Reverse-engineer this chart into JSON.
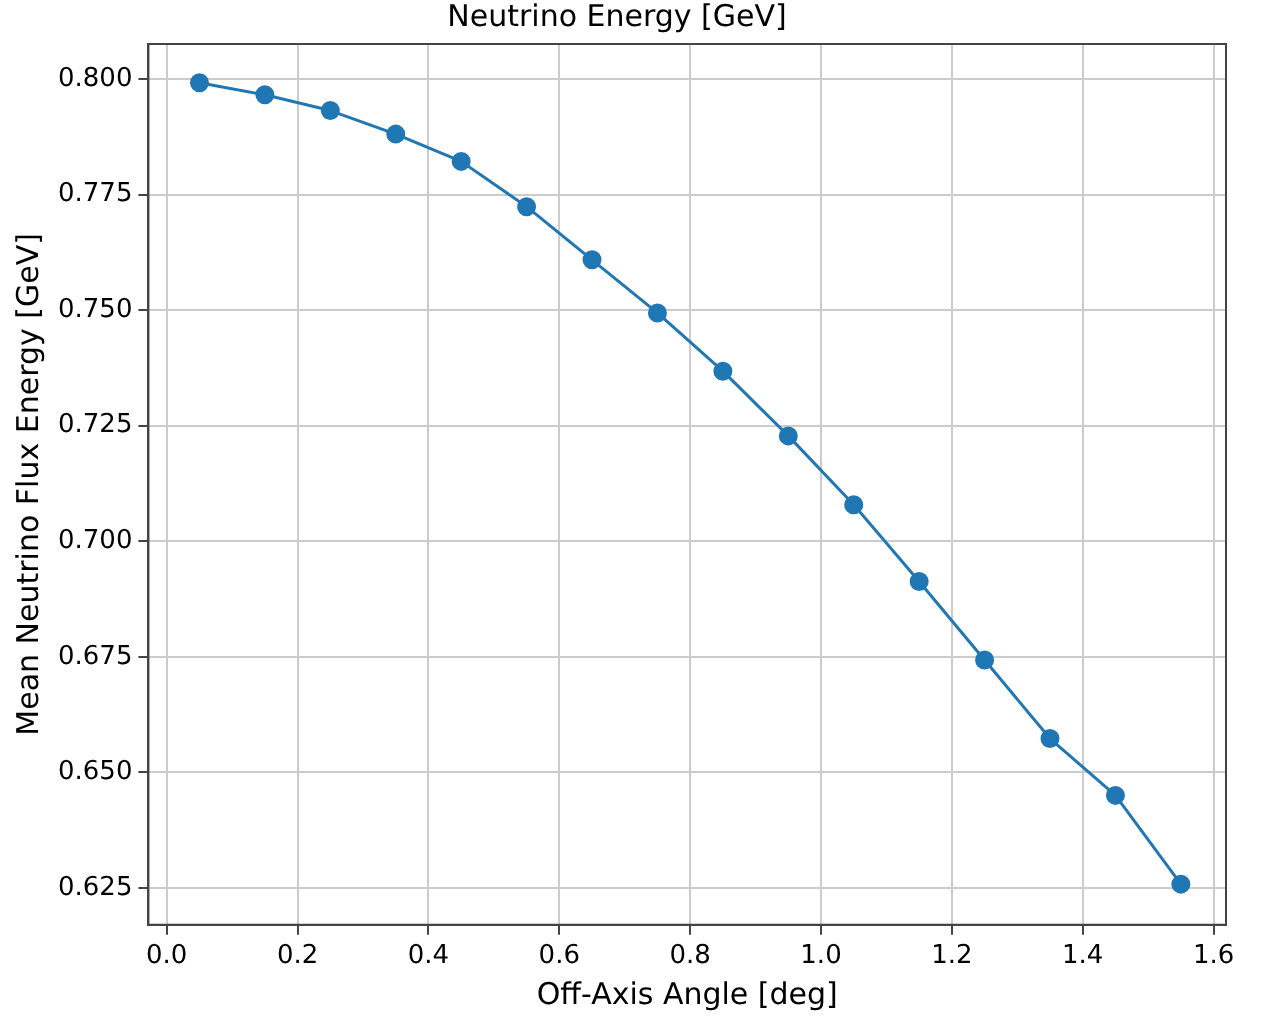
{
  "chart_data": {
    "type": "line",
    "title": "Neutrino Energy [GeV]",
    "xlabel": "Off-Axis Angle [deg]",
    "ylabel": "Mean Neutrino Flux Energy [GeV]",
    "x": [
      0.05,
      0.15,
      0.25,
      0.35,
      0.45,
      0.55,
      0.65,
      0.75,
      0.85,
      0.95,
      1.05,
      1.15,
      1.25,
      1.35,
      1.45,
      1.55
    ],
    "series": [
      {
        "color": "#1f77b4",
        "values": [
          0.7992,
          0.7966,
          0.7932,
          0.7881,
          0.7822,
          0.7724,
          0.7609,
          0.7494,
          0.7368,
          0.7228,
          0.7079,
          0.6913,
          0.6743,
          0.6573,
          0.645,
          0.6258
        ]
      }
    ],
    "xlim": [
      -0.028,
      1.619
    ],
    "xticks": [
      {
        "value": 0,
        "label": "0.0"
      },
      0.2,
      0.4,
      0.6,
      0.8,
      {
        "value": 1,
        "label": "1.0"
      },
      1.2,
      1.4,
      1.6
    ],
    "ylim": [
      0.617,
      0.8076
    ],
    "yticks": [
      0.625,
      {
        "value": 0.65,
        "label": "0.650"
      },
      0.675,
      {
        "value": 0.7,
        "label": "0.700"
      },
      0.725,
      {
        "value": 0.75,
        "label": "0.750"
      },
      0.775,
      {
        "value": 0.8,
        "label": "0.800"
      }
    ],
    "grid": true,
    "marker": "circle",
    "line_style": "solid",
    "legend": false
  }
}
